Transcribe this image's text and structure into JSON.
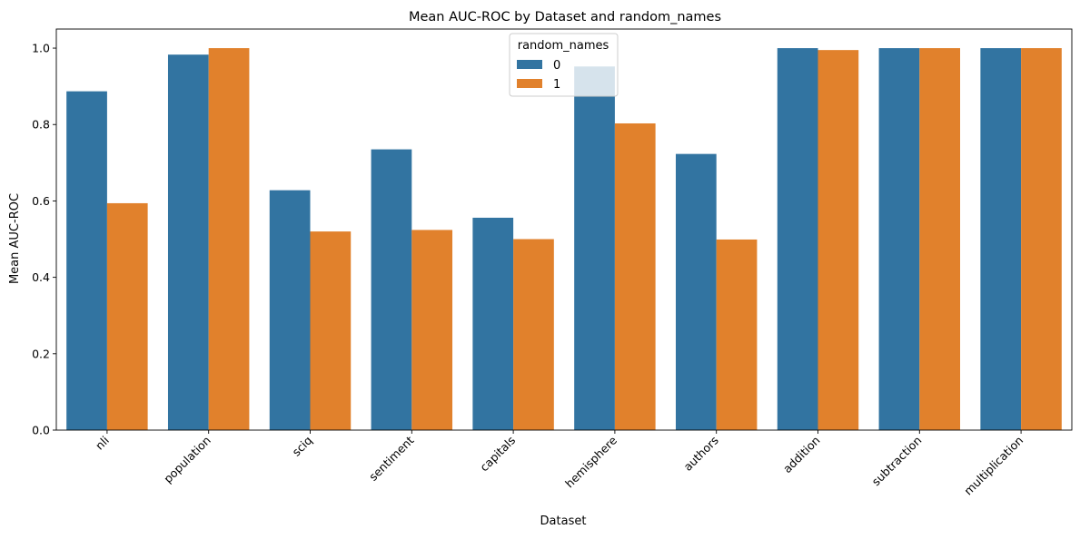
{
  "chart_data": {
    "type": "bar",
    "title": "Mean AUC-ROC by Dataset and random_names",
    "xlabel": "Dataset",
    "ylabel": "Mean AUC-ROC",
    "ylim": [
      0,
      1.05
    ],
    "yticks": [
      0.0,
      0.2,
      0.4,
      0.6,
      0.8,
      1.0
    ],
    "ytick_labels": [
      "0.0",
      "0.2",
      "0.4",
      "0.6",
      "0.8",
      "1.0"
    ],
    "categories": [
      "nli",
      "population",
      "sciq",
      "sentiment",
      "capitals",
      "hemisphere",
      "authors",
      "addition",
      "subtraction",
      "multiplication"
    ],
    "legend": {
      "title": "random_names",
      "position": "top-center"
    },
    "grid": false,
    "series": [
      {
        "name": "0",
        "color": "#3274a1",
        "values": [
          0.887,
          0.983,
          0.628,
          0.735,
          0.556,
          0.952,
          0.723,
          1.0,
          1.0,
          1.0
        ]
      },
      {
        "name": "1",
        "color": "#e1812c",
        "values": [
          0.594,
          1.0,
          0.52,
          0.524,
          0.5,
          0.803,
          0.499,
          0.995,
          1.0,
          1.0
        ]
      }
    ]
  }
}
